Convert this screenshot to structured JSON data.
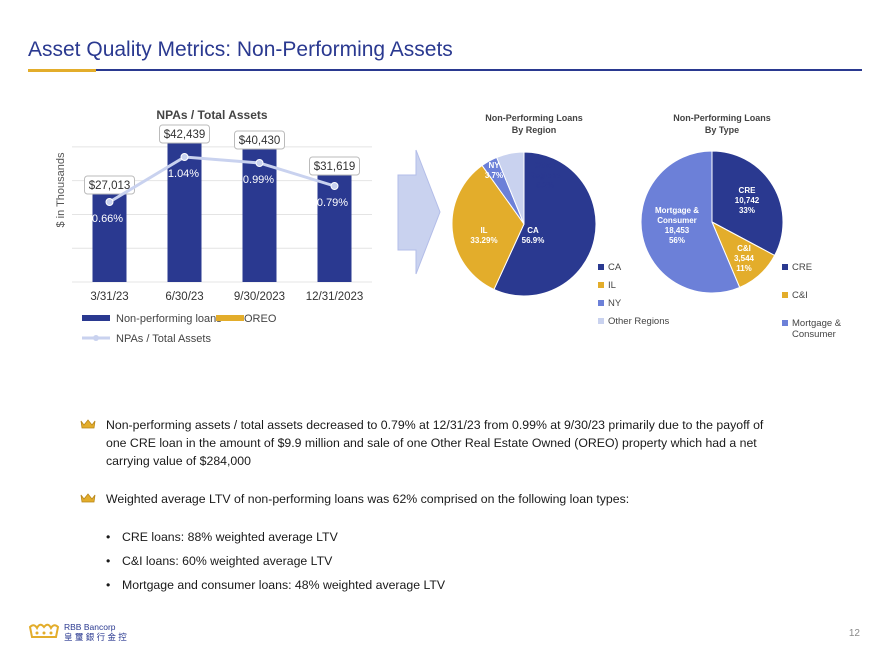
{
  "page": {
    "title": "Asset Quality Metrics:  Non-Performing Assets",
    "page_number": "12",
    "logo_line1": "RBB Bancorp",
    "logo_line2": "皇 璽 銀 行 金 控",
    "accent_gold": "#e3ad2b",
    "accent_blue": "#2a3990"
  },
  "chart_data": [
    {
      "type": "bar",
      "title": "NPAs / Total Assets",
      "ylabel": "$ in Thousands",
      "categories": [
        "3/31/23",
        "6/30/23",
        "9/30/2023",
        "12/31/2023"
      ],
      "series": [
        {
          "name": "Non-performing loans",
          "values": [
            26300,
            41800,
            40430,
            31619
          ],
          "color": "#2a3990"
        },
        {
          "name": "OREO",
          "values": [
            713,
            639,
            0,
            0
          ],
          "color": "#e3ad2b"
        }
      ],
      "total_labels": [
        "$27,013",
        "$42,439",
        "$40,430",
        "$31,619"
      ],
      "ratio_series": {
        "name": "NPAs / Total Assets",
        "values": [
          0.66,
          1.04,
          0.99,
          0.79
        ],
        "labels": [
          "0.66%",
          "1.04%",
          "0.99%",
          "0.79%"
        ],
        "color": "#c9d2ef"
      },
      "grid": true,
      "legend": "bottom"
    },
    {
      "type": "pie",
      "title": "Non-Performing Loans\nBy Region",
      "slices": [
        {
          "name": "CA",
          "value": 56.9,
          "label": "CA\n56.9%",
          "color": "#2a3990"
        },
        {
          "name": "IL",
          "value": 33.29,
          "label": "IL\n33.29%",
          "color": "#e3ad2b"
        },
        {
          "name": "NY",
          "value": 3.7,
          "label": "NY\n3.7%",
          "color": "#6c80d8"
        },
        {
          "name": "Other Regions",
          "value": 6.2,
          "label": "Other\nRegions\n6.2%",
          "color": "#c9d2ef"
        }
      ],
      "legend": "bottom-right"
    },
    {
      "type": "pie",
      "title": "Non-Performing Loans\nBy Type",
      "slices": [
        {
          "name": "CRE",
          "value": 10742,
          "label": "CRE\n10,742\n33%",
          "color": "#2a3990"
        },
        {
          "name": "C&I",
          "value": 3544,
          "label": "C&I\n3,544\n11%",
          "color": "#e3ad2b"
        },
        {
          "name": "Mortgage & Consumer",
          "value": 18453,
          "label": "Mortgage &\nConsumer\n18,453\n56%",
          "color": "#6c80d8"
        }
      ],
      "legend": "right"
    }
  ],
  "bullets": [
    "Non-performing assets / total assets decreased to 0.79% at 12/31/23 from 0.99% at 9/30/23 primarily due to the payoff of one CRE loan in the amount of $9.9 million and sale of one Other Real Estate Owned (OREO) property which had a net carrying value of $284,000",
    "Weighted average LTV of non-performing loans was 62% comprised on the following loan types:"
  ],
  "sub_bullets": [
    "CRE loans:  88% weighted average LTV",
    "C&I loans:  60% weighted average LTV",
    "Mortgage and consumer loans: 48% weighted average LTV"
  ]
}
